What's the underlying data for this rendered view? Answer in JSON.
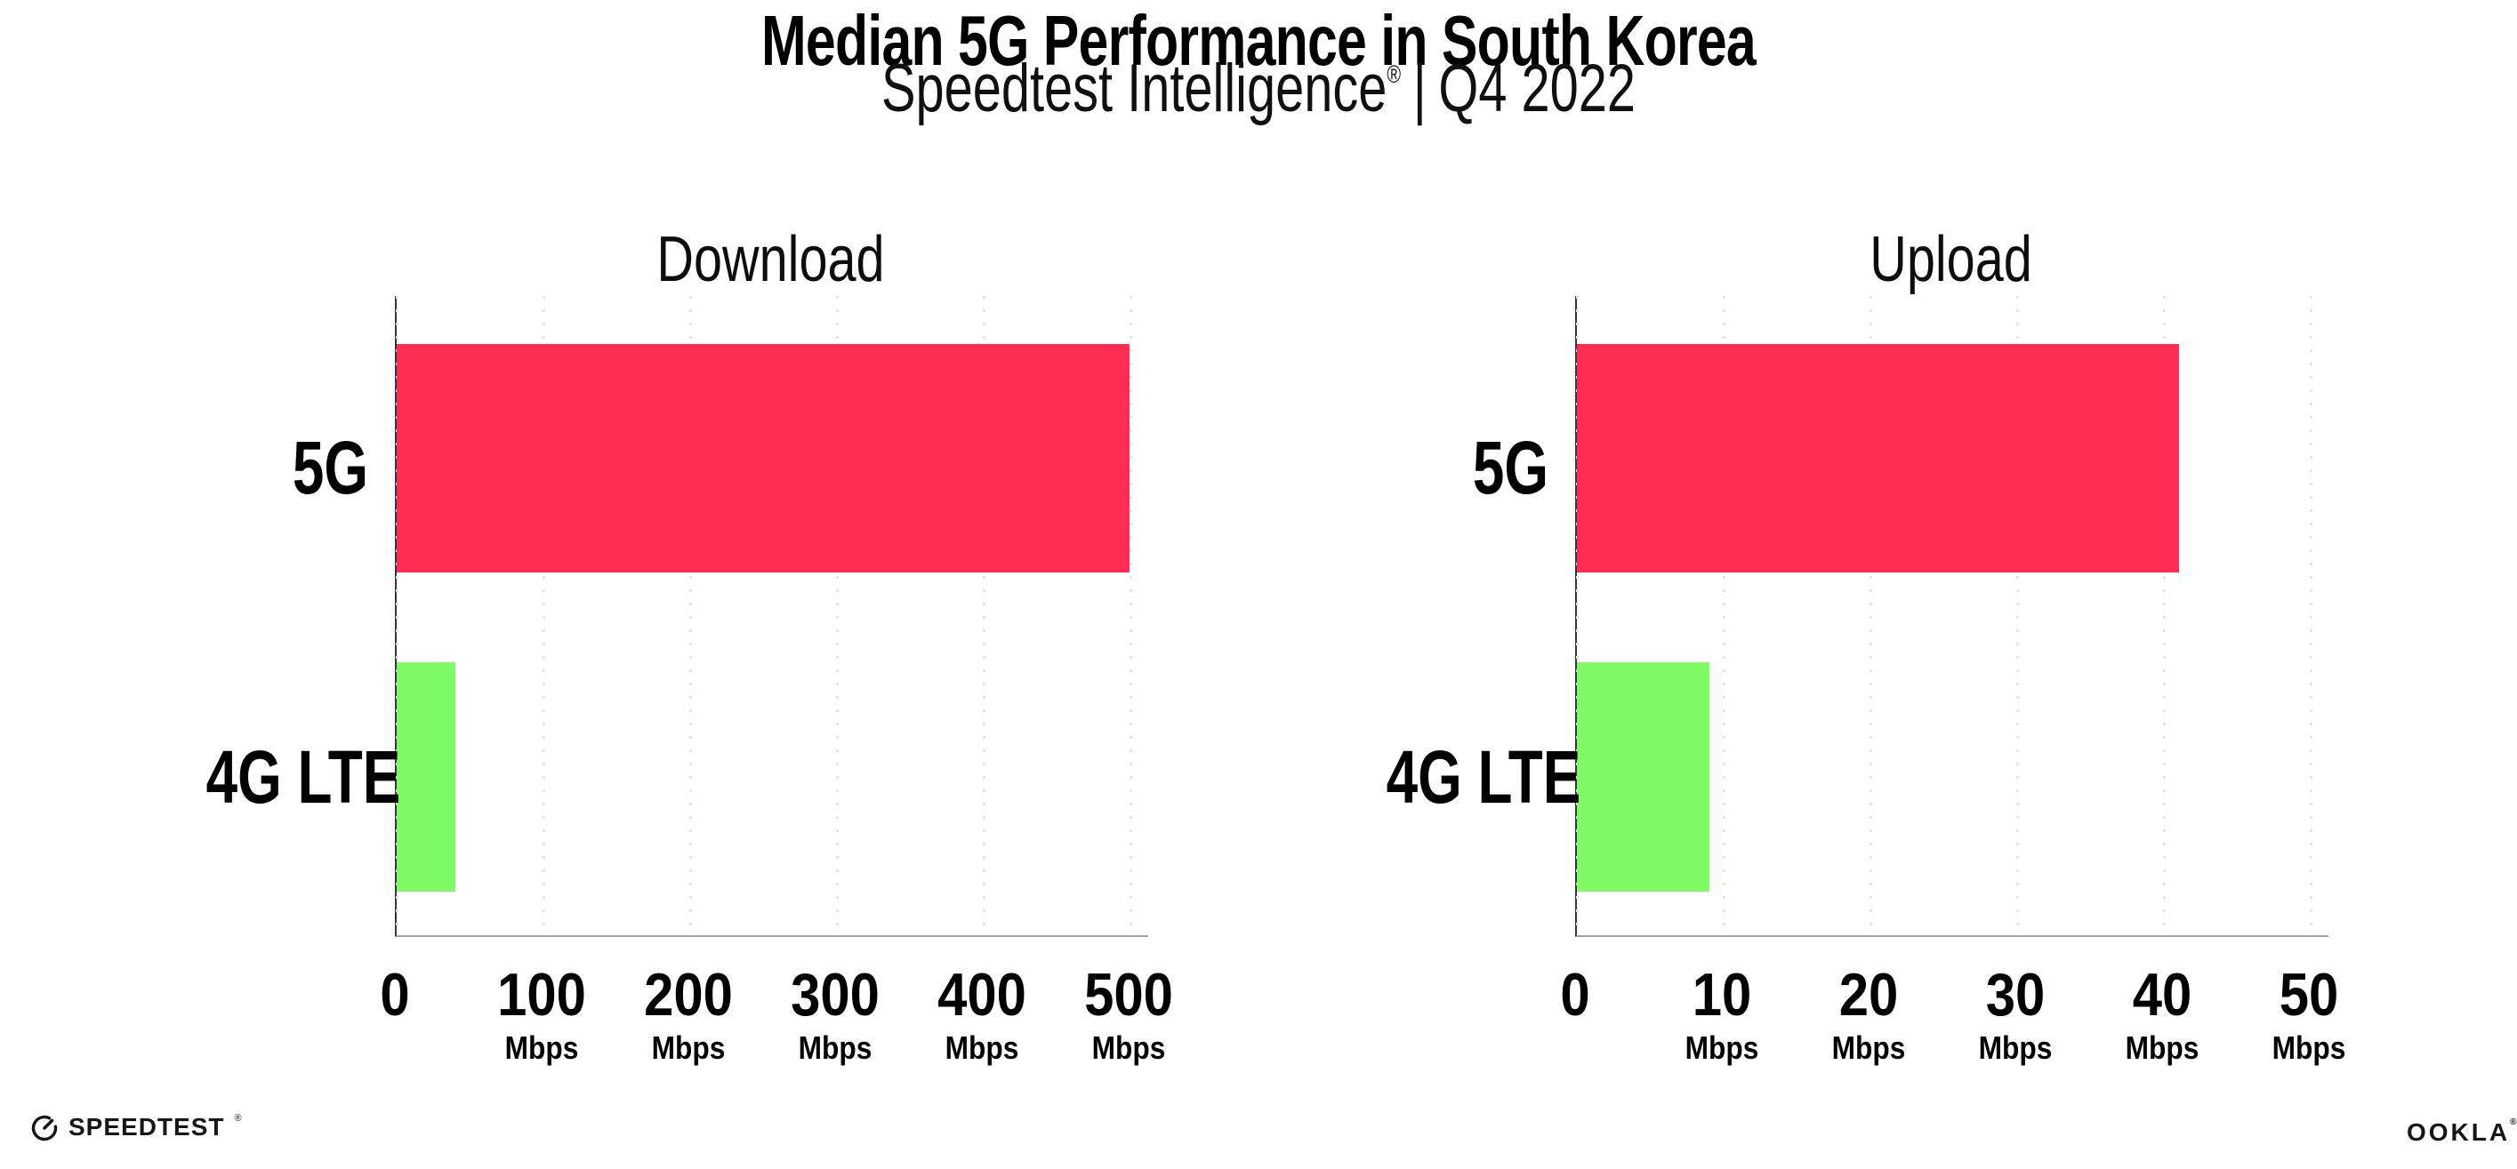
{
  "header": {
    "title": "Median 5G Performance in South Korea",
    "subtitle": {
      "brand": "Speedtest Intelligence",
      "registered_mark": "®",
      "separator": "|",
      "period": "Q4 2022"
    }
  },
  "chart_data": [
    {
      "type": "bar",
      "orientation": "horizontal",
      "title": "Download",
      "categories": [
        "5G",
        "4G LTE"
      ],
      "values": [
        499,
        40
      ],
      "unit": "Mbps",
      "xlim": [
        0,
        512
      ],
      "xticks": [
        0,
        100,
        200,
        300,
        400,
        500
      ],
      "tick_unit": "Mbps",
      "bar_colors": [
        "#ff2d56",
        "#80fb66"
      ],
      "grid": "dotted-vertical-major",
      "legend": "none"
    },
    {
      "type": "bar",
      "orientation": "horizontal",
      "title": "Upload",
      "categories": [
        "5G",
        "4G LTE"
      ],
      "values": [
        41,
        9
      ],
      "unit": "Mbps",
      "xlim": [
        0,
        51.2
      ],
      "xticks": [
        0,
        10,
        20,
        30,
        40,
        50
      ],
      "tick_unit": "Mbps",
      "bar_colors": [
        "#ff2d56",
        "#80fb66"
      ],
      "grid": "dotted-vertical-major",
      "legend": "none"
    }
  ],
  "footer": {
    "speedtest_wordmark": "SPEEDTEST",
    "speedtest_registered": "®",
    "ookla_wordmark": "OOKLA",
    "ookla_registered": "®"
  },
  "colors": {
    "bar_5g": "#ff2d56",
    "bar_4g_lte": "#80fb66",
    "gridline": "#e3e3ed",
    "y_axis": "#35353f",
    "x_axis": "#a2a2a2",
    "text": "#0c0c0c"
  }
}
